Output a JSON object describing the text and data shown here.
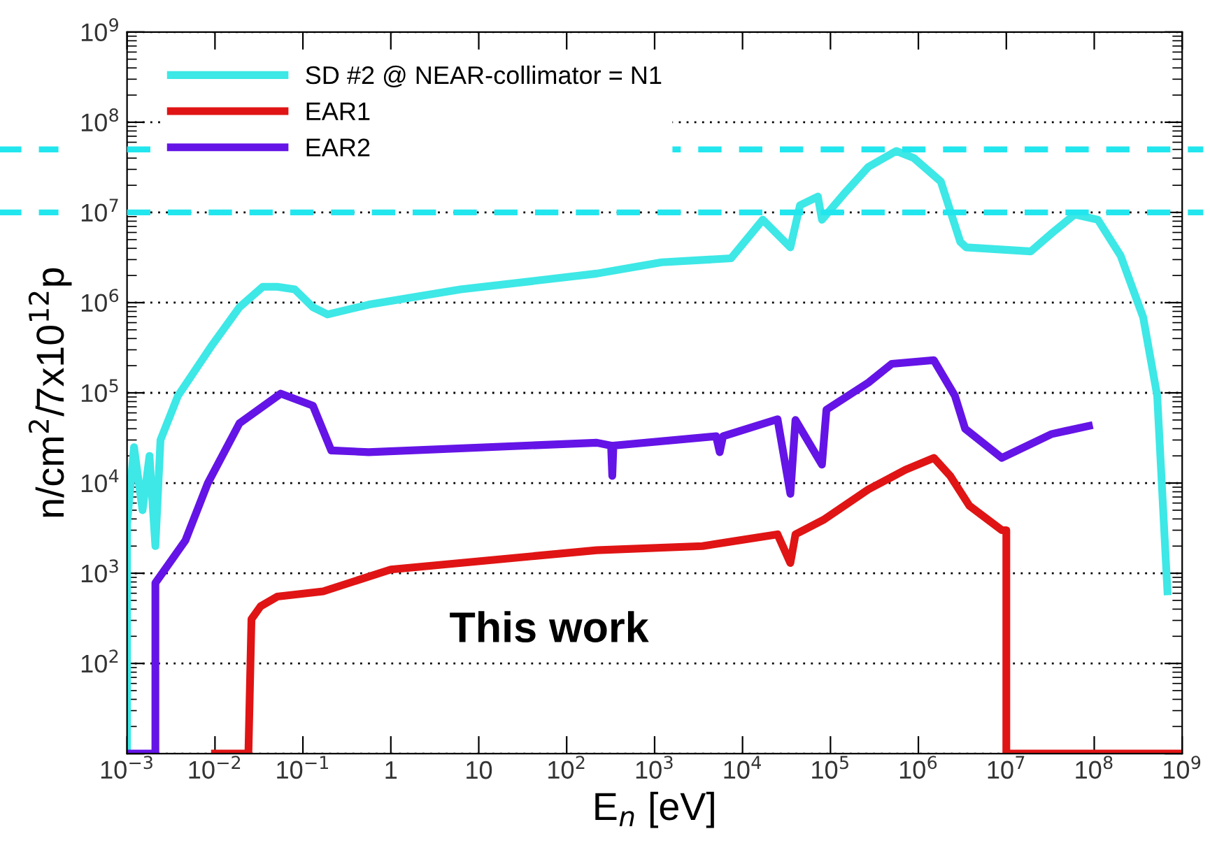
{
  "chart_data": {
    "type": "line",
    "xlabel": "E$_{n}$ [eV]",
    "ylabel": "n/cm$^{2}$/7x10$^{12}$p",
    "log": "xy",
    "xlim": [
      0.001,
      1000000000
    ],
    "ylim": [
      10,
      1000000000
    ],
    "xticks": [
      {
        "value": 0.001,
        "label": "10$^{−3}$"
      },
      {
        "value": 0.01,
        "label": "10$^{−2}$"
      },
      {
        "value": 0.1,
        "label": "10$^{−1}$"
      },
      1,
      10,
      {
        "value": 100,
        "label": "10$^{2}$"
      },
      {
        "value": 1000,
        "label": "10$^{3}$"
      },
      {
        "value": 10000,
        "label": "10$^{4}$"
      },
      {
        "value": 100000,
        "label": "10$^{5}$"
      },
      {
        "value": 1000000,
        "label": "10$^{6}$"
      },
      {
        "value": 10000000,
        "label": "10$^{7}$"
      },
      {
        "value": 100000000,
        "label": "10$^{8}$"
      },
      {
        "value": 1000000000,
        "label": "10$^{9}$"
      }
    ],
    "yticks": [
      {
        "value": 10,
        "label": null
      },
      {
        "value": 100,
        "label": "10$^{2}$"
      },
      {
        "value": 1000,
        "label": "10$^{3}$"
      },
      {
        "value": 10000,
        "label": "10$^{4}$"
      },
      {
        "value": 100000,
        "label": "10$^{5}$"
      },
      {
        "value": 1000000,
        "label": "10$^{6}$"
      },
      {
        "value": 10000000,
        "label": "10$^{7}$"
      },
      {
        "value": 100000000,
        "label": "10$^{8}$"
      },
      {
        "value": 1000000000,
        "label": "10$^{9}$"
      }
    ],
    "grid": "y",
    "legend": "top left",
    "marker": "none",
    "line_style": "solid",
    "ref_lines": [
      {
        "axis": "y",
        "value": 50000000,
        "label": null,
        "color": "#22e6ee",
        "line_style": "dashed"
      },
      {
        "axis": "y",
        "value": 10000000,
        "label": null,
        "color": "#22e6ee",
        "line_style": "dashed"
      }
    ],
    "annotations": [
      "This work"
    ],
    "series": [
      {
        "name": "SD #2 @ NEAR-collimator = N1",
        "color": "#3de8e6",
        "x": [
          0.001,
          0.001,
          0.0012,
          0.0015,
          0.0018,
          0.0021,
          0.0024,
          0.0038,
          0.0093,
          0.019,
          0.035,
          0.051,
          0.081,
          0.13,
          0.19,
          0.56,
          6.2,
          220,
          1200,
          7400,
          17000,
          35000,
          45000,
          72000,
          80000,
          150000,
          270000,
          560000,
          890000,
          1800000,
          3000000,
          3500000,
          19000000,
          33000000,
          60000000,
          110000000,
          200000000,
          360000000,
          520000000,
          680000000
        ],
        "values": [
          10,
          3500,
          25000,
          5000,
          20000,
          2000,
          30000,
          93000,
          340000,
          890000,
          1500000,
          1500000,
          1400000,
          890000,
          740000,
          950000,
          1400000,
          2100000,
          2800000,
          3100000,
          8300000,
          4100000,
          12000000,
          15000000,
          8300000,
          17000000,
          32000000,
          48000000,
          40000000,
          22000000,
          4700000,
          4100000,
          3700000,
          5900000,
          9500000,
          8300000,
          3300000,
          690000,
          93000,
          630
        ]
      },
      {
        "name": "EAR1",
        "color": "#e01414",
        "x": [
          0.01,
          0.024,
          0.026,
          0.033,
          0.051,
          0.17,
          1,
          220,
          3500,
          25000,
          35000,
          40000,
          83000,
          270000,
          710000,
          1500000,
          2300000,
          3800000,
          8900000,
          10000000,
          10000000,
          1000000000
        ],
        "values": [
          10,
          10,
          310,
          430,
          550,
          630,
          1100,
          1800,
          2000,
          2700,
          1300,
          2700,
          3900,
          8500,
          14000,
          19000,
          12000,
          5600,
          3000,
          3000,
          10,
          10
        ]
      },
      {
        "name": "EAR2",
        "color": "#6414e6",
        "x": [
          0.001,
          0.0021,
          0.0021,
          0.0046,
          0.0083,
          0.019,
          0.056,
          0.13,
          0.21,
          0.56,
          220,
          320,
          330,
          340,
          5000,
          5500,
          6000,
          25000,
          35000,
          40000,
          80000,
          90000,
          270000,
          500000,
          1500000,
          2600000,
          3400000,
          8900000,
          33000000,
          87000000
        ],
        "values": [
          10,
          10,
          780,
          2300,
          10000,
          46000,
          98000,
          72000,
          23000,
          22000,
          28000,
          26000,
          12000,
          26000,
          33000,
          22000,
          33000,
          51000,
          7600,
          50000,
          16000,
          65000,
          130000,
          210000,
          230000,
          93000,
          40000,
          19000,
          35000,
          43000
        ]
      }
    ]
  }
}
